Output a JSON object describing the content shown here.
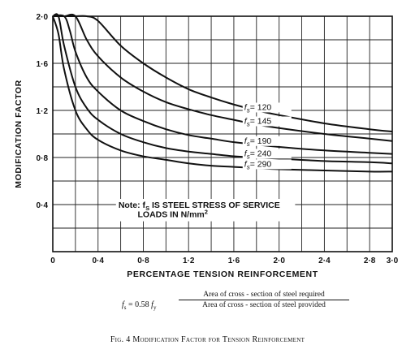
{
  "chart_data": {
    "type": "line",
    "title": "",
    "xlabel": "PERCENTAGE TENSION REINFORCEMENT",
    "ylabel": "MODIFICATION FACTOR",
    "xlim": [
      0,
      3.0
    ],
    "ylim": [
      0,
      2.0
    ],
    "x_ticks": [
      0,
      0.4,
      0.8,
      1.2,
      1.6,
      2.0,
      2.4,
      2.8,
      3.0
    ],
    "x_tick_labels": [
      "0",
      "0·4",
      "0·8",
      "1·2",
      "1·6",
      "2·0",
      "2·4",
      "2·8",
      "3·0"
    ],
    "y_ticks": [
      0,
      0.4,
      0.8,
      1.2,
      1.6,
      2.0
    ],
    "y_tick_labels": [
      "",
      "0·4",
      "0·8",
      "1·2",
      "1·6",
      "2·0"
    ],
    "grid": true,
    "series": [
      {
        "name": "fs = 120",
        "label": "= 120",
        "x": [
          0.0,
          0.1,
          0.2,
          0.3,
          0.4,
          0.6,
          0.8,
          1.0,
          1.2,
          1.4,
          1.6,
          1.8,
          2.0,
          2.4,
          2.8,
          3.0
        ],
        "y": [
          2.0,
          2.0,
          2.0,
          2.0,
          1.96,
          1.75,
          1.6,
          1.48,
          1.38,
          1.31,
          1.25,
          1.2,
          1.16,
          1.09,
          1.04,
          1.02
        ]
      },
      {
        "name": "fs = 145",
        "label": "= 145",
        "x": [
          0.0,
          0.1,
          0.2,
          0.3,
          0.4,
          0.6,
          0.8,
          1.0,
          1.2,
          1.4,
          1.6,
          1.8,
          2.0,
          2.4,
          2.8,
          3.0
        ],
        "y": [
          2.0,
          2.0,
          2.0,
          1.8,
          1.66,
          1.48,
          1.36,
          1.27,
          1.21,
          1.16,
          1.12,
          1.08,
          1.05,
          1.0,
          0.96,
          0.94
        ]
      },
      {
        "name": "fs = 190",
        "label": "= 190",
        "x": [
          0.0,
          0.1,
          0.15,
          0.2,
          0.3,
          0.4,
          0.6,
          0.8,
          1.0,
          1.2,
          1.4,
          1.6,
          1.8,
          2.0,
          2.4,
          2.8,
          3.0
        ],
        "y": [
          2.0,
          2.0,
          1.88,
          1.7,
          1.48,
          1.36,
          1.2,
          1.11,
          1.04,
          0.99,
          0.96,
          0.93,
          0.91,
          0.89,
          0.86,
          0.84,
          0.83
        ]
      },
      {
        "name": "fs = 240",
        "label": "= 240",
        "x": [
          0.0,
          0.05,
          0.1,
          0.2,
          0.3,
          0.4,
          0.6,
          0.8,
          1.0,
          1.2,
          1.4,
          1.6,
          1.8,
          2.0,
          2.4,
          2.8,
          3.0
        ],
        "y": [
          2.0,
          2.0,
          1.75,
          1.4,
          1.22,
          1.12,
          1.0,
          0.93,
          0.88,
          0.85,
          0.83,
          0.81,
          0.8,
          0.79,
          0.77,
          0.76,
          0.75
        ]
      },
      {
        "name": "fs = 290",
        "label": "= 290",
        "x": [
          0.0,
          0.05,
          0.1,
          0.2,
          0.3,
          0.4,
          0.6,
          0.8,
          1.0,
          1.2,
          1.4,
          1.6,
          1.8,
          2.0,
          2.4,
          2.8,
          3.0
        ],
        "y": [
          2.0,
          1.85,
          1.55,
          1.2,
          1.04,
          0.95,
          0.86,
          0.81,
          0.78,
          0.75,
          0.73,
          0.72,
          0.71,
          0.7,
          0.69,
          0.68,
          0.68
        ]
      }
    ],
    "series_symbol": "f",
    "series_symbol_sub": "s",
    "note_line1": "Note: f",
    "note_sub": "S",
    "note_line1_rest": " IS STEEL STRESS OF SERVICE",
    "note_line2": "LOADS IN N/mm",
    "note_sup": "2"
  },
  "formula": {
    "lhs_f": "f",
    "lhs_s": "s",
    "lhs_eq": " = 0.58 ",
    "lhs_fy": "f",
    "lhs_y": "y",
    "numerator": "Area of cross - section of steel required",
    "denominator": "Area of cross - section of steel provided"
  },
  "caption": "Fig. 4 Modification Factor for Tension Reinforcement"
}
